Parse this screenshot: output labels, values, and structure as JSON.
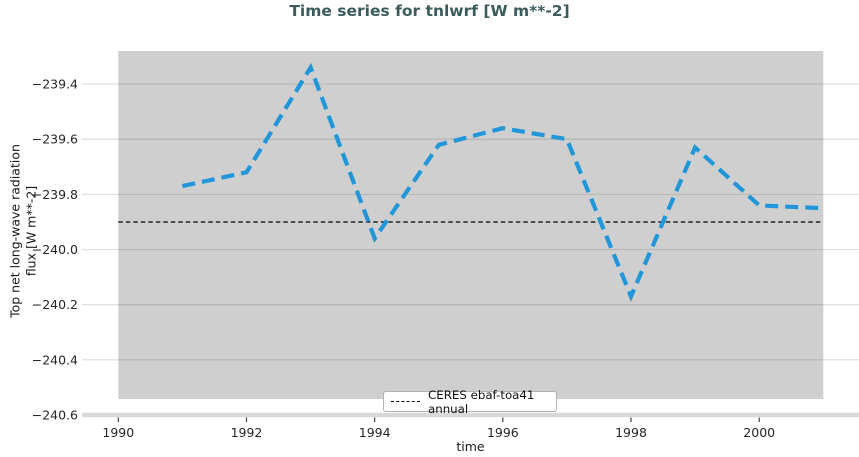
{
  "figure": {
    "title": "Time series for tnlwrf [W m**-2]"
  },
  "chart_data": {
    "type": "line",
    "title": "Time series for tnlwrf [W m**-2]",
    "xlabel": "time",
    "ylabel": "Top net long-wave radiation flux [W m**-2]",
    "ylabel_lines": [
      "Top net long-wave radiation",
      "flux [W m**-2]"
    ],
    "series": [
      {
        "name": "tnlwrf",
        "style": "dashed",
        "color": "#2196d9",
        "x": [
          1991,
          1992,
          1993,
          1994,
          1995,
          1996,
          1997,
          1998,
          1999,
          2000,
          2001
        ],
        "y": [
          -239.77,
          -239.72,
          -239.34,
          -239.96,
          -239.62,
          -239.56,
          -239.6,
          -240.17,
          -239.63,
          -239.84,
          -239.85
        ]
      }
    ],
    "reference_line": {
      "label": "CERES ebaf-toa41 annual",
      "value": -239.9,
      "color": "#000000",
      "style": "dashed"
    },
    "legend": {
      "position": "lower center",
      "entries": [
        "CERES ebaf-toa41 annual"
      ]
    },
    "xlim": [
      1990,
      2001
    ],
    "ylim": [
      -240.6,
      -239.28
    ],
    "xticks": [
      1990,
      1992,
      1994,
      1996,
      1998,
      2000
    ],
    "yticks": [
      -239.4,
      -239.6,
      -239.8,
      -240.0,
      -240.2,
      -240.4,
      -240.6
    ],
    "grid": true,
    "colors": {
      "panel_bg": "#cfcfcf",
      "grid_inside": "#b9b9b9",
      "grid_outside": "#e2e2e2",
      "spine": "#d9d9d9",
      "tick_label": "#262626",
      "tick_mark": "#404040",
      "title": "#3b5c5c"
    }
  }
}
